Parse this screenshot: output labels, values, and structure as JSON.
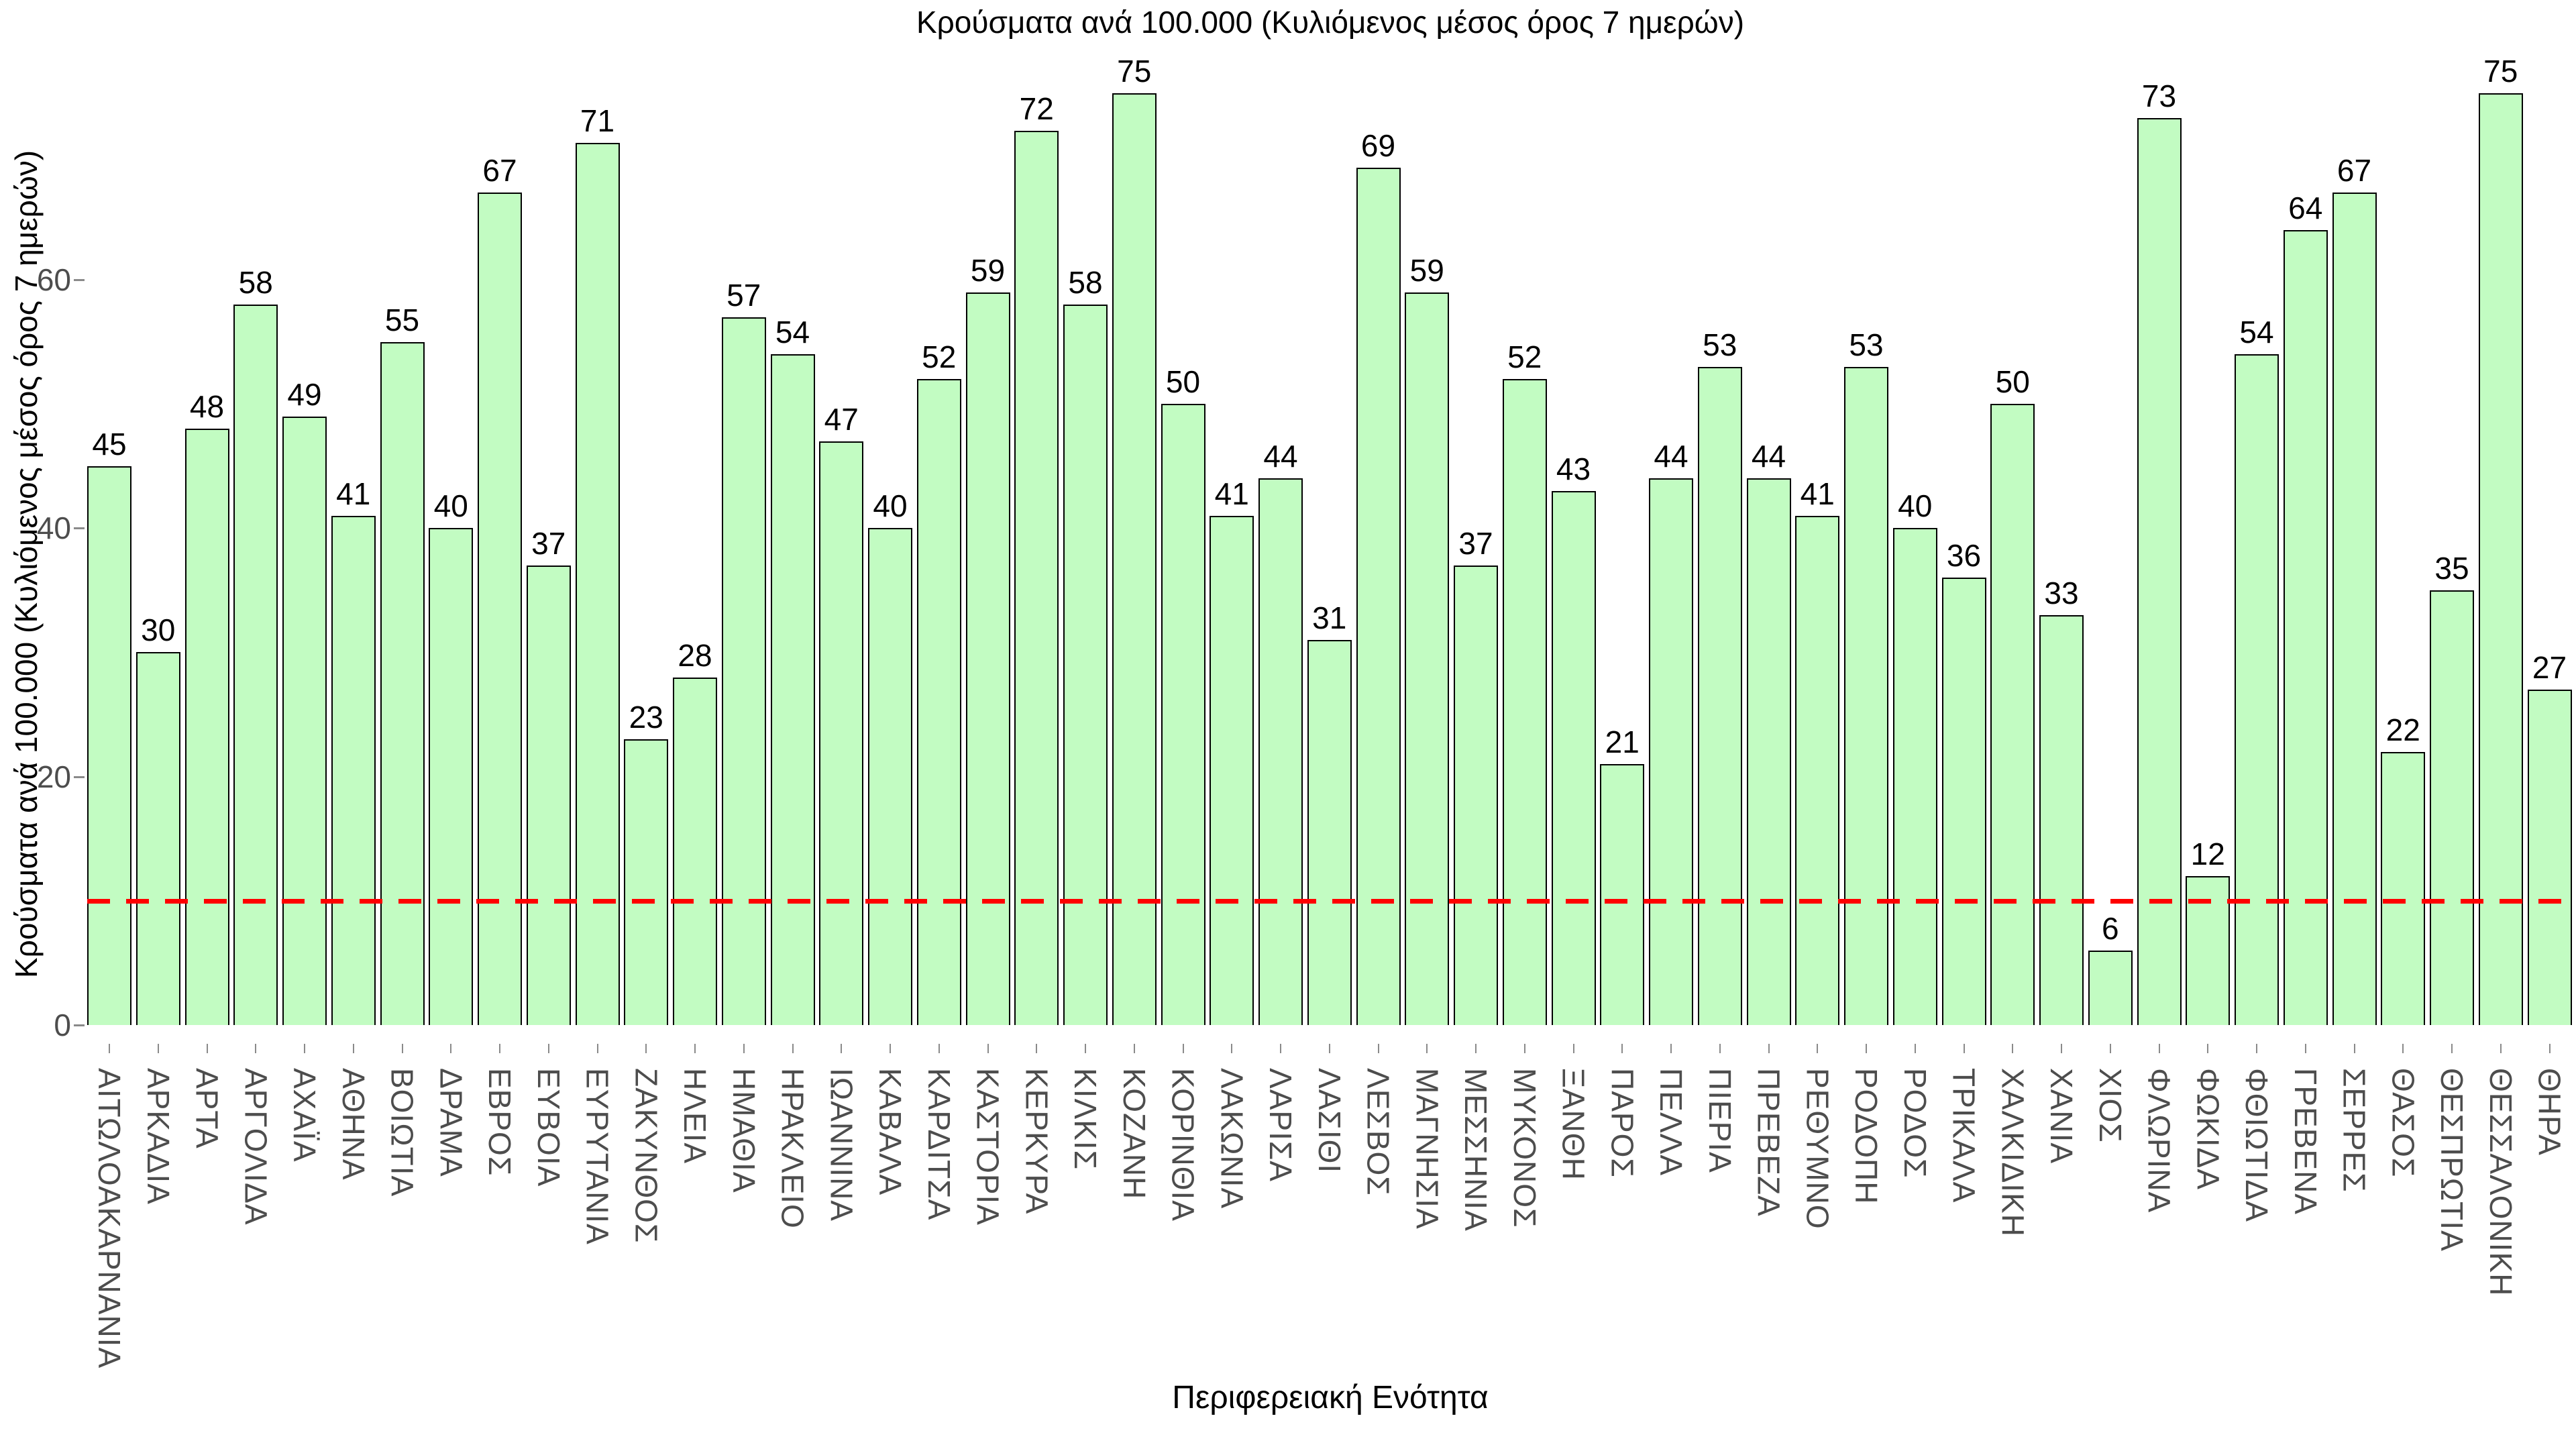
{
  "chart_data": {
    "type": "bar",
    "title": "Κρούσματα ανά 100.000 (Κυλιόμενος μέσος όρος 7 ημερών)",
    "xlabel": "Περιφερειακή Ενότητα",
    "ylabel": "Κρούσματα ανά 100.000 (Κυλιόμενος μέσος όρος 7 ημερών)",
    "categories": [
      "ΑΙΤΩΛΟΑΚΑΡΝΑΝΙΑ",
      "ΑΡΚΑΔΙΑ",
      "ΑΡΤΑ",
      "ΑΡΓΟΛΙΔΑ",
      "ΑΧΑΪΑ",
      "ΑΘΗΝΑ",
      "ΒΟΙΩΤΙΑ",
      "ΔΡΑΜΑ",
      "ΕΒΡΟΣ",
      "ΕΥΒΟΙΑ",
      "ΕΥΡΥΤΑΝΙΑ",
      "ΖΑΚΥΝΘΟΣ",
      "ΗΛΕΙΑ",
      "ΗΜΑΘΙΑ",
      "ΗΡΑΚΛΕΙΟ",
      "ΙΩΑΝΝΙΝΑ",
      "ΚΑΒΑΛΑ",
      "ΚΑΡΔΙΤΣΑ",
      "ΚΑΣΤΟΡΙΑ",
      "ΚΕΡΚΥΡΑ",
      "ΚΙΛΚΙΣ",
      "ΚΟΖΑΝΗ",
      "ΚΟΡΙΝΘΙΑ",
      "ΛΑΚΩΝΙΑ",
      "ΛΑΡΙΣΑ",
      "ΛΑΣΙΘΙ",
      "ΛΕΣΒΟΣ",
      "ΜΑΓΝΗΣΙΑ",
      "ΜΕΣΣΗΝΙΑ",
      "ΜΥΚΟΝΟΣ",
      "ΞΑΝΘΗ",
      "ΠΑΡΟΣ",
      "ΠΕΛΛΑ",
      "ΠΙΕΡΙΑ",
      "ΠΡΕΒΕΖΑ",
      "ΡΕΘΥΜΝΟ",
      "ΡΟΔΟΠΗ",
      "ΡΟΔΟΣ",
      "ΤΡΙΚΑΛΑ",
      "ΧΑΛΚΙΔΙΚΗ",
      "ΧΑΝΙΑ",
      "ΧΙΟΣ",
      "ΦΛΩΡΙΝΑ",
      "ΦΩΚΙΔΑ",
      "ΦΘΙΩΤΙΔΑ",
      "ΓΡΕΒΕΝΑ",
      "ΣΕΡΡΕΣ",
      "ΘΑΣΟΣ",
      "ΘΕΣΠΡΩΤΙΑ",
      "ΘΕΣΣΑΛΟΝΙΚΗ",
      "ΘΗΡΑ"
    ],
    "values": [
      45,
      30,
      48,
      58,
      49,
      41,
      55,
      40,
      67,
      37,
      71,
      23,
      28,
      57,
      54,
      47,
      40,
      52,
      59,
      72,
      58,
      75,
      50,
      41,
      44,
      31,
      69,
      59,
      37,
      52,
      43,
      21,
      44,
      53,
      44,
      41,
      53,
      40,
      36,
      50,
      33,
      6,
      73,
      12,
      54,
      64,
      67,
      22,
      35,
      75,
      27
    ],
    "yticks": [
      0,
      20,
      40,
      60
    ],
    "ylim": [
      0,
      78
    ],
    "grid": false,
    "legend": null,
    "bar_fill_color": "#c2fcc2",
    "bar_border_color": "#000000",
    "value_label_color": "#000000",
    "tick_label_color": "#4d4d4d",
    "threshold_line": {
      "value": 10,
      "color": "#ff0000",
      "style": "dashed"
    }
  }
}
